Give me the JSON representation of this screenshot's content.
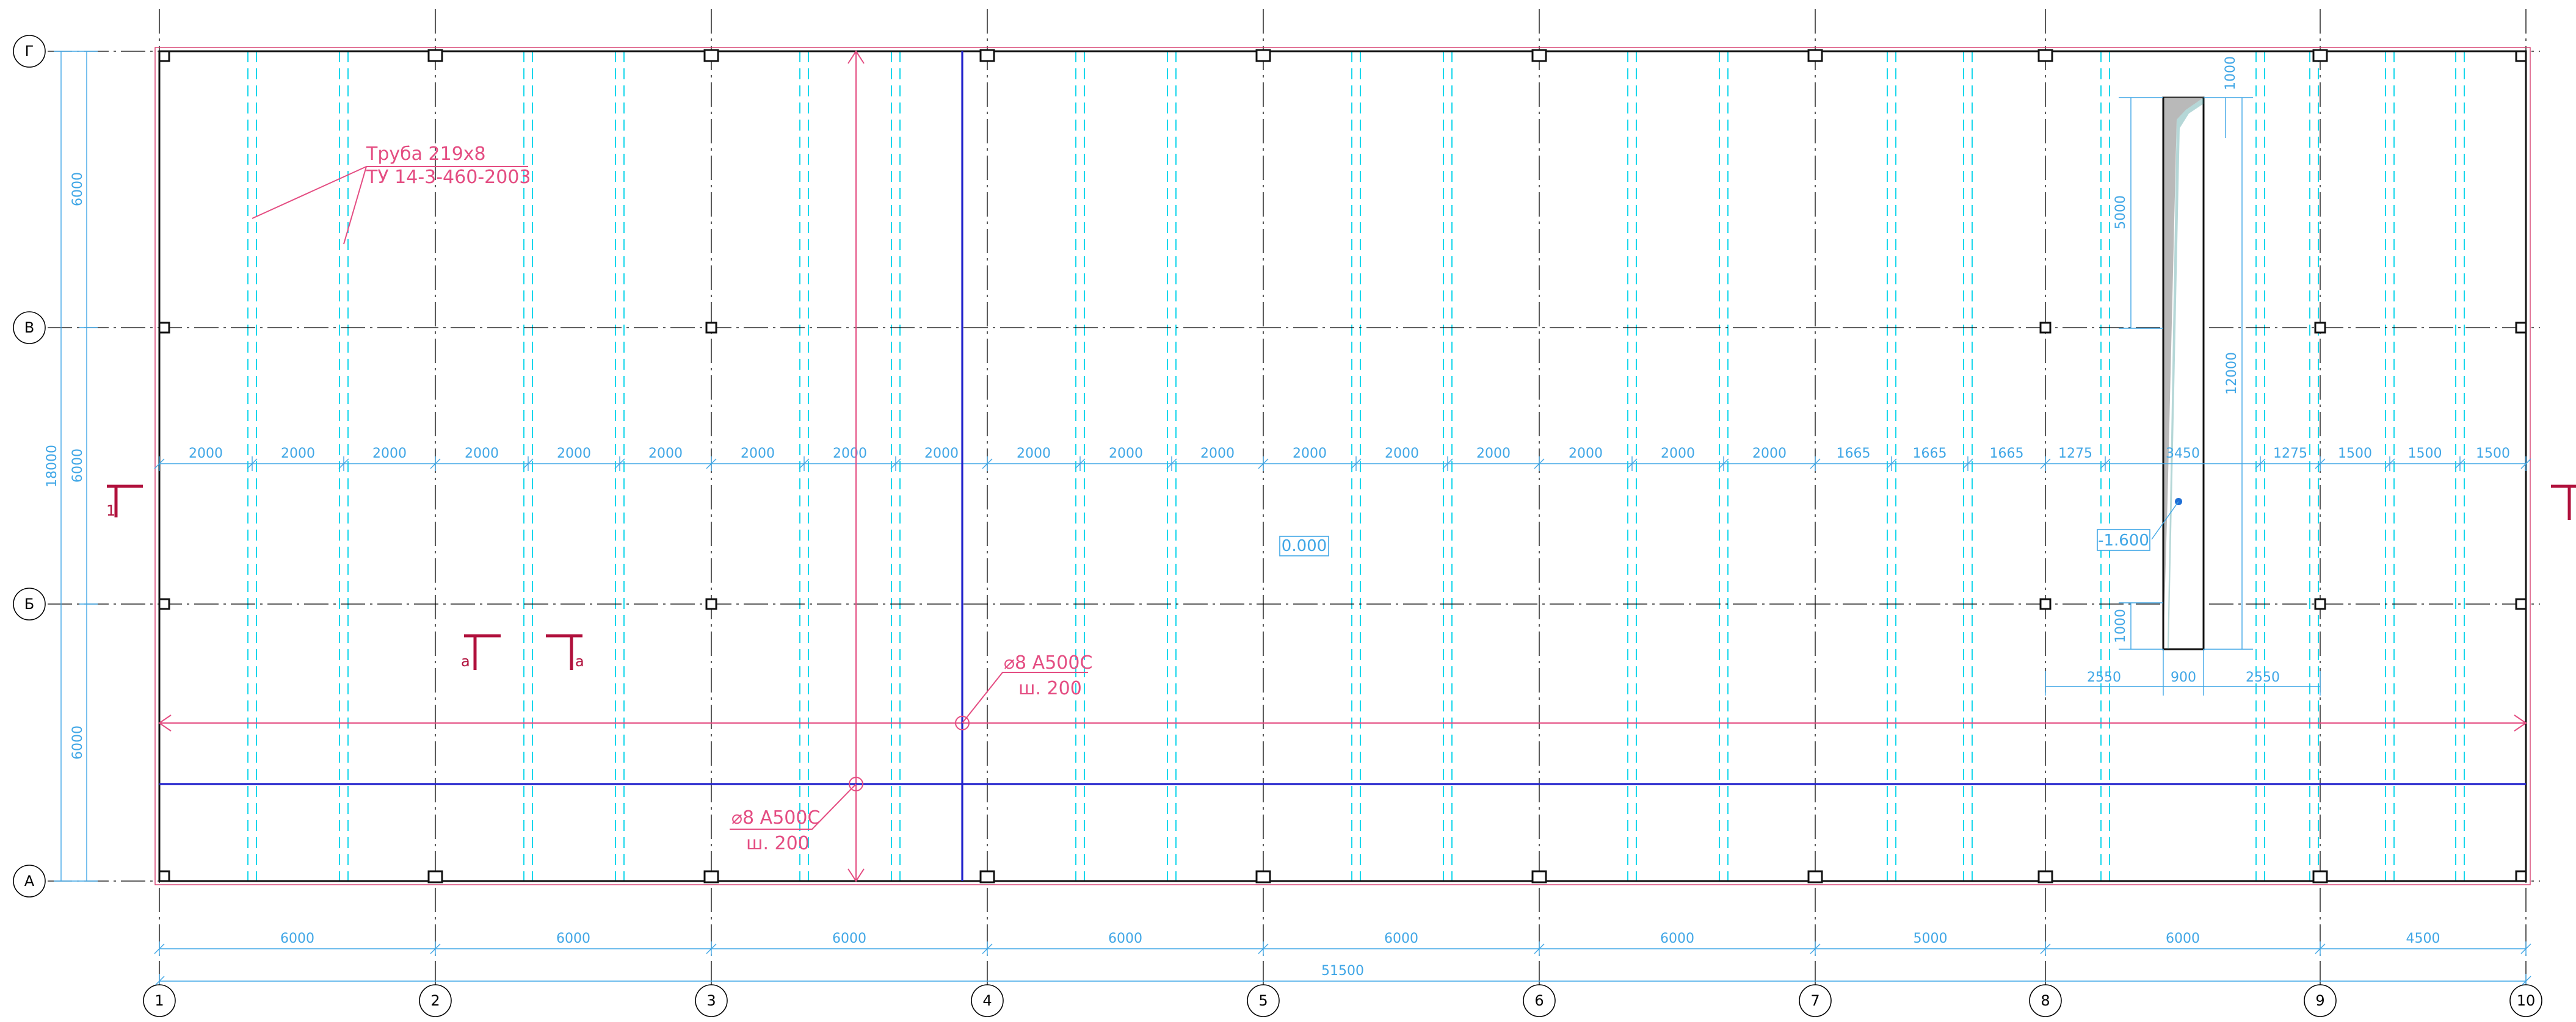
{
  "axes_columns": [
    "1",
    "2",
    "3",
    "4",
    "5",
    "6",
    "7",
    "8",
    "9",
    "10"
  ],
  "axes_rows": [
    "Г",
    "В",
    "Б",
    "А"
  ],
  "span_dims": [
    "6000",
    "6000",
    "6000",
    "6000",
    "6000",
    "6000",
    "5000",
    "6000",
    "4500"
  ],
  "overall_dim": "51500",
  "left_dims": {
    "row_spans": [
      "6000",
      "6000",
      "6000"
    ],
    "total": "18000"
  },
  "strip_dims": [
    "2000",
    "2000",
    "2000",
    "2000",
    "2000",
    "2000",
    "2000",
    "2000",
    "2000",
    "2000",
    "2000",
    "2000",
    "2000",
    "2000",
    "2000",
    "2000",
    "2000",
    "2000",
    "1665",
    "1665",
    "1665",
    "1275",
    "3450",
    "1275",
    "1500",
    "1500",
    "1500"
  ],
  "pit": {
    "vertical_dims": [
      "1000",
      "5000",
      "12000",
      "1000"
    ],
    "bottom_dims": [
      "2550",
      "900",
      "2550"
    ],
    "level": "-1.600"
  },
  "floor_level": "0.000",
  "callouts": {
    "pipe_line1": "Труба 219х8",
    "pipe_line2": "ТУ 14-3-460-2003",
    "rebar_right_line1": "⌀8 А500С",
    "rebar_right_line2": "ш. 200",
    "rebar_left_line1": "⌀8 А500С",
    "rebar_left_line2": "ш. 200"
  },
  "section_marks": {
    "main": "1",
    "detail": "а"
  },
  "colors": {
    "grid": "#000000",
    "dimension": "#3fa6e6",
    "strip": "#19d7ec",
    "rebar": "#e44d82",
    "rebar_axis": "#2222cc",
    "section": "#b0103c"
  }
}
